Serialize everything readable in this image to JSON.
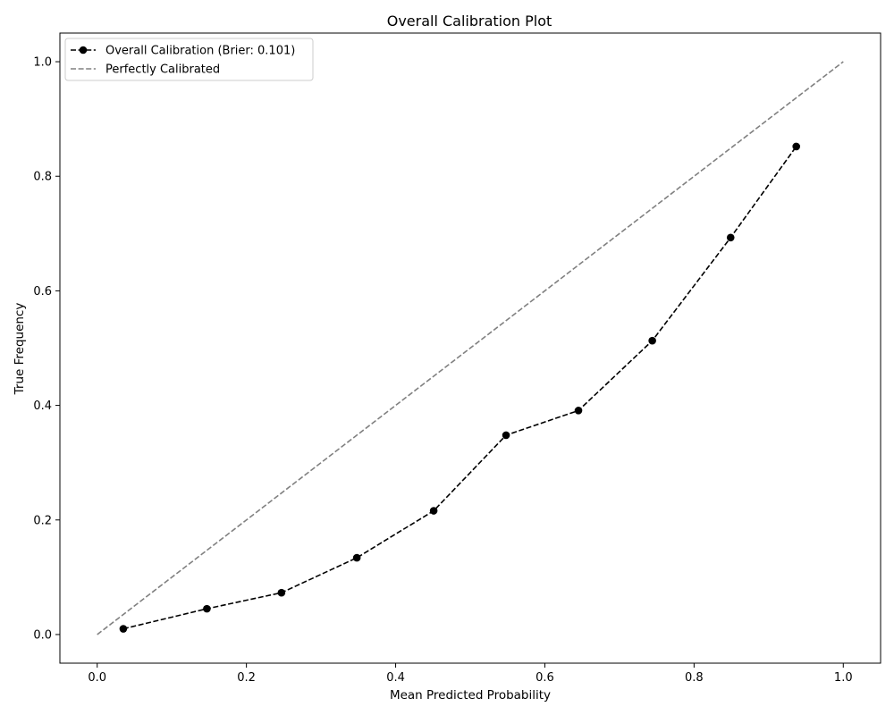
{
  "chart_data": {
    "type": "line",
    "title": "Overall Calibration Plot",
    "xlabel": "Mean Predicted Probability",
    "ylabel": "True Frequency",
    "xlim": [
      -0.05,
      1.05
    ],
    "ylim": [
      -0.05,
      1.05
    ],
    "xticks": [
      "0.0",
      "0.2",
      "0.4",
      "0.6",
      "0.8",
      "1.0"
    ],
    "yticks": [
      "0.0",
      "0.2",
      "0.4",
      "0.6",
      "0.8",
      "1.0"
    ],
    "grid": false,
    "legend_position": "top-left",
    "series": [
      {
        "name": "Overall Calibration (Brier: 0.101)",
        "color": "#000000",
        "linestyle": "dashed",
        "marker": "circle",
        "x": [
          0.035,
          0.147,
          0.247,
          0.348,
          0.451,
          0.548,
          0.645,
          0.744,
          0.849,
          0.937
        ],
        "y": [
          0.01,
          0.045,
          0.073,
          0.134,
          0.216,
          0.348,
          0.391,
          0.513,
          0.693,
          0.852
        ]
      },
      {
        "name": "Perfectly Calibrated",
        "color": "#808080",
        "linestyle": "dashed",
        "marker": "none",
        "x": [
          0.0,
          1.0
        ],
        "y": [
          0.0,
          1.0
        ]
      }
    ]
  }
}
